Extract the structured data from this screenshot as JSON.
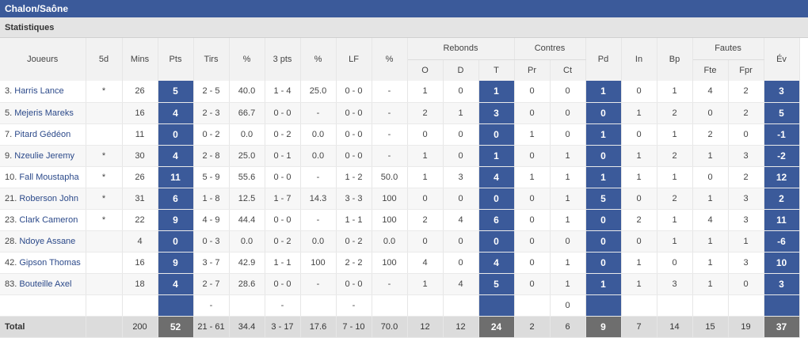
{
  "team": "Chalon/Saône",
  "section": "Statistiques",
  "headers": {
    "players": "Joueurs",
    "five": "5d",
    "mins": "Mins",
    "pts": "Pts",
    "tirs": "Tirs",
    "pct1": "%",
    "threes": "3 pts",
    "pct2": "%",
    "lf": "LF",
    "pct3": "%",
    "rebonds": "Rebonds",
    "reb_o": "O",
    "reb_d": "D",
    "reb_t": "T",
    "contres": "Contres",
    "ctr_pr": "Pr",
    "ctr_ct": "Ct",
    "pd": "Pd",
    "in": "In",
    "bp": "Bp",
    "fautes": "Fautes",
    "f_fte": "Fte",
    "f_fpr": "Fpr",
    "ev": "Év"
  },
  "rows": [
    {
      "num": "3.",
      "name": "Harris Lance",
      "five": "*",
      "mins": "26",
      "pts": "5",
      "tirs": "2 - 5",
      "pct1": "40.0",
      "threes": "1 - 4",
      "pct2": "25.0",
      "lf": "0 - 0",
      "pct3": "-",
      "o": "1",
      "d": "0",
      "t": "1",
      "pr": "0",
      "ct": "0",
      "pd": "1",
      "in": "0",
      "bp": "1",
      "fte": "4",
      "fpr": "2",
      "ev": "3"
    },
    {
      "num": "5.",
      "name": "Mejeris Mareks",
      "five": "",
      "mins": "16",
      "pts": "4",
      "tirs": "2 - 3",
      "pct1": "66.7",
      "threes": "0 - 0",
      "pct2": "-",
      "lf": "0 - 0",
      "pct3": "-",
      "o": "2",
      "d": "1",
      "t": "3",
      "pr": "0",
      "ct": "0",
      "pd": "0",
      "in": "1",
      "bp": "2",
      "fte": "0",
      "fpr": "2",
      "ev": "5"
    },
    {
      "num": "7.",
      "name": "Pitard Gédéon",
      "five": "",
      "mins": "11",
      "pts": "0",
      "tirs": "0 - 2",
      "pct1": "0.0",
      "threes": "0 - 2",
      "pct2": "0.0",
      "lf": "0 - 0",
      "pct3": "-",
      "o": "0",
      "d": "0",
      "t": "0",
      "pr": "1",
      "ct": "0",
      "pd": "1",
      "in": "0",
      "bp": "1",
      "fte": "2",
      "fpr": "0",
      "ev": "-1"
    },
    {
      "num": "9.",
      "name": "Nzeulie Jeremy",
      "five": "*",
      "mins": "30",
      "pts": "4",
      "tirs": "2 - 8",
      "pct1": "25.0",
      "threes": "0 - 1",
      "pct2": "0.0",
      "lf": "0 - 0",
      "pct3": "-",
      "o": "1",
      "d": "0",
      "t": "1",
      "pr": "0",
      "ct": "1",
      "pd": "0",
      "in": "1",
      "bp": "2",
      "fte": "1",
      "fpr": "3",
      "ev": "-2"
    },
    {
      "num": "10.",
      "name": "Fall Moustapha",
      "five": "*",
      "mins": "26",
      "pts": "11",
      "tirs": "5 - 9",
      "pct1": "55.6",
      "threes": "0 - 0",
      "pct2": "-",
      "lf": "1 - 2",
      "pct3": "50.0",
      "o": "1",
      "d": "3",
      "t": "4",
      "pr": "1",
      "ct": "1",
      "pd": "1",
      "in": "1",
      "bp": "1",
      "fte": "0",
      "fpr": "2",
      "ev": "12"
    },
    {
      "num": "21.",
      "name": "Roberson John",
      "five": "*",
      "mins": "31",
      "pts": "6",
      "tirs": "1 - 8",
      "pct1": "12.5",
      "threes": "1 - 7",
      "pct2": "14.3",
      "lf": "3 - 3",
      "pct3": "100",
      "o": "0",
      "d": "0",
      "t": "0",
      "pr": "0",
      "ct": "1",
      "pd": "5",
      "in": "0",
      "bp": "2",
      "fte": "1",
      "fpr": "3",
      "ev": "2"
    },
    {
      "num": "23.",
      "name": "Clark Cameron",
      "five": "*",
      "mins": "22",
      "pts": "9",
      "tirs": "4 - 9",
      "pct1": "44.4",
      "threes": "0 - 0",
      "pct2": "-",
      "lf": "1 - 1",
      "pct3": "100",
      "o": "2",
      "d": "4",
      "t": "6",
      "pr": "0",
      "ct": "1",
      "pd": "0",
      "in": "2",
      "bp": "1",
      "fte": "4",
      "fpr": "3",
      "ev": "11"
    },
    {
      "num": "28.",
      "name": "Ndoye Assane",
      "five": "",
      "mins": "4",
      "pts": "0",
      "tirs": "0 - 3",
      "pct1": "0.0",
      "threes": "0 - 2",
      "pct2": "0.0",
      "lf": "0 - 2",
      "pct3": "0.0",
      "o": "0",
      "d": "0",
      "t": "0",
      "pr": "0",
      "ct": "0",
      "pd": "0",
      "in": "0",
      "bp": "1",
      "fte": "1",
      "fpr": "1",
      "ev": "-6"
    },
    {
      "num": "42.",
      "name": "Gipson Thomas",
      "five": "",
      "mins": "16",
      "pts": "9",
      "tirs": "3 - 7",
      "pct1": "42.9",
      "threes": "1 - 1",
      "pct2": "100",
      "lf": "2 - 2",
      "pct3": "100",
      "o": "4",
      "d": "0",
      "t": "4",
      "pr": "0",
      "ct": "1",
      "pd": "0",
      "in": "1",
      "bp": "0",
      "fte": "1",
      "fpr": "3",
      "ev": "10"
    },
    {
      "num": "83.",
      "name": "Bouteille Axel",
      "five": "",
      "mins": "18",
      "pts": "4",
      "tirs": "2 - 7",
      "pct1": "28.6",
      "threes": "0 - 0",
      "pct2": "-",
      "lf": "0 - 0",
      "pct3": "-",
      "o": "1",
      "d": "4",
      "t": "5",
      "pr": "0",
      "ct": "1",
      "pd": "1",
      "in": "1",
      "bp": "3",
      "fte": "1",
      "fpr": "0",
      "ev": "3"
    }
  ],
  "team_row": {
    "tirs": "-",
    "threes": "-",
    "lf": "-",
    "ct": "0"
  },
  "total": {
    "label": "Total",
    "mins": "200",
    "pts": "52",
    "tirs": "21 - 61",
    "pct1": "34.4",
    "threes": "3 - 17",
    "pct2": "17.6",
    "lf": "7 - 10",
    "pct3": "70.0",
    "o": "12",
    "d": "12",
    "t": "24",
    "pr": "2",
    "ct": "6",
    "pd": "9",
    "in": "7",
    "bp": "14",
    "fte": "15",
    "fpr": "19",
    "ev": "37"
  }
}
